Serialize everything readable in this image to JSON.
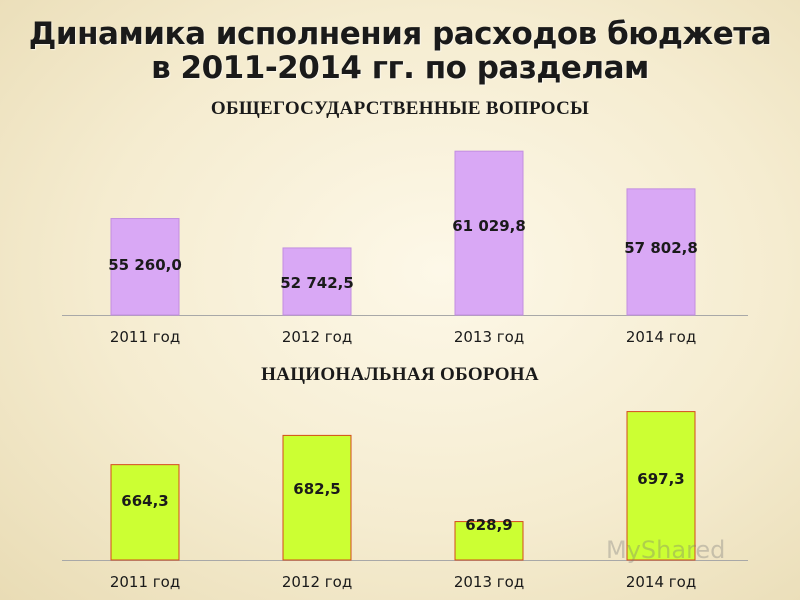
{
  "header": {
    "line1": "Динамика исполнения расходов бюджета",
    "line2": "в 2011-2014 гг. по разделам"
  },
  "watermark": "MyShared",
  "chart_data": [
    {
      "type": "bar",
      "title": "ОБЩЕГОСУДАРСТВЕННЫЕ ВОПРОСЫ",
      "categories": [
        "2011 год",
        "2012 год",
        "2013 год",
        "2014 год"
      ],
      "values": [
        55260.0,
        52742.5,
        61029.8,
        57802.8
      ],
      "value_labels": [
        "55 260,0",
        "52 742,5",
        "61 029,8",
        "57 802,8"
      ],
      "ylim": [
        47000,
        62500
      ],
      "bar_color": "#d9a8f5",
      "bar_stroke": "#c28ee0",
      "grid": false
    },
    {
      "type": "bar",
      "title": "НАЦИОНАЛЬНАЯ ОБОРОНА",
      "categories": [
        "2011 год",
        "2012 год",
        "2013 год",
        "2014 год"
      ],
      "values": [
        664.3,
        682.5,
        628.9,
        697.3
      ],
      "value_labels": [
        "664,3",
        "682,5",
        "628,9",
        "697,3"
      ],
      "ylim": [
        605,
        707
      ],
      "bar_color": "#ccff33",
      "bar_stroke": "#d44a1a",
      "grid": false
    }
  ]
}
